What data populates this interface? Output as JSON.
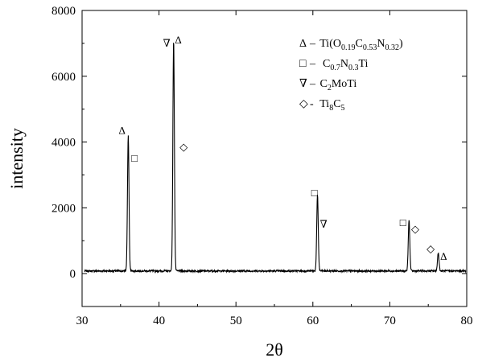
{
  "chart_data": {
    "type": "line",
    "xlabel": "2θ",
    "ylabel": "intensity",
    "xlim": [
      30,
      80
    ],
    "ylim": [
      -1000,
      8000
    ],
    "x_ticks": [
      30,
      40,
      50,
      60,
      70,
      80
    ],
    "y_ticks": [
      0,
      2000,
      4000,
      6000,
      8000
    ],
    "grid": false,
    "legend_position": "top-right",
    "line_color": "#000000",
    "baseline": 80,
    "peaks": [
      {
        "x": 36.0,
        "height": 4100
      },
      {
        "x": 41.9,
        "height": 7000
      },
      {
        "x": 60.6,
        "height": 2300
      },
      {
        "x": 72.5,
        "height": 1550
      },
      {
        "x": 76.3,
        "height": 560
      }
    ],
    "legend": [
      {
        "symbol": "Δ",
        "dash": "–",
        "parts": [
          {
            "t": " Ti(O"
          },
          {
            "t": "0.19",
            "sub": true
          },
          {
            "t": "C"
          },
          {
            "t": "0.53",
            "sub": true
          },
          {
            "t": "N"
          },
          {
            "t": "0.32",
            "sub": true
          },
          {
            "t": ")"
          }
        ]
      },
      {
        "symbol": "□",
        "dash": "–",
        "parts": [
          {
            "t": "  C"
          },
          {
            "t": "0.7",
            "sub": true
          },
          {
            "t": "N"
          },
          {
            "t": "0.3",
            "sub": true
          },
          {
            "t": "Ti"
          }
        ]
      },
      {
        "symbol": "∇",
        "dash": "–",
        "parts": [
          {
            "t": " C"
          },
          {
            "t": "2",
            "sub": true
          },
          {
            "t": "MoTi"
          }
        ]
      },
      {
        "symbol": "◇",
        "dash": "-",
        "parts": [
          {
            "t": " Ti"
          },
          {
            "t": "8",
            "sub": true
          },
          {
            "t": "C"
          },
          {
            "t": "5",
            "sub": true
          }
        ]
      }
    ],
    "annotations": [
      {
        "symbol": "Δ",
        "x": 35.2,
        "y": 4250
      },
      {
        "symbol": "□",
        "x": 36.8,
        "y": 3400
      },
      {
        "symbol": "∇",
        "x": 41.0,
        "y": 6900
      },
      {
        "symbol": "Δ",
        "x": 42.5,
        "y": 7000
      },
      {
        "symbol": "◇",
        "x": 43.2,
        "y": 3750
      },
      {
        "symbol": "□",
        "x": 60.2,
        "y": 2350
      },
      {
        "symbol": "∇",
        "x": 61.4,
        "y": 1400
      },
      {
        "symbol": "□",
        "x": 71.7,
        "y": 1450
      },
      {
        "symbol": "◇",
        "x": 73.3,
        "y": 1250
      },
      {
        "symbol": "◇",
        "x": 75.3,
        "y": 650
      },
      {
        "symbol": "Δ",
        "x": 77.0,
        "y": 420
      }
    ]
  }
}
